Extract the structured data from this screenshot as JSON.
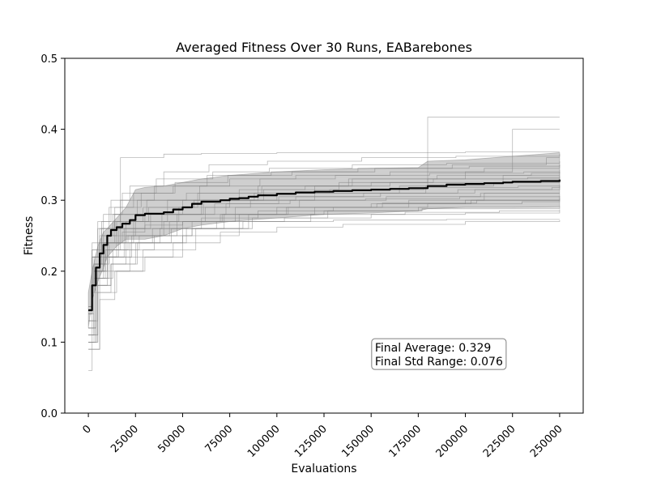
{
  "chart_data": {
    "type": "line",
    "title": "Averaged Fitness Over 30 Runs, EABarebones",
    "xlabel": "Evaluations",
    "ylabel": "Fitness",
    "xlim": [
      -12500,
      262500
    ],
    "ylim": [
      0,
      0.5
    ],
    "x_ticks": [
      0,
      25000,
      50000,
      75000,
      100000,
      125000,
      150000,
      175000,
      200000,
      225000,
      250000
    ],
    "y_ticks": [
      0.0,
      0.1,
      0.2,
      0.3,
      0.4,
      0.5
    ],
    "y_tick_labels": [
      "0.0",
      "0.1",
      "0.2",
      "0.3",
      "0.4",
      "0.5"
    ],
    "grid": false,
    "colors": {
      "mean": "#000000",
      "band": "#808080",
      "runs": "#808080",
      "axes": "#000000",
      "annotation_border": "#808080"
    },
    "mean_series": {
      "x": [
        0,
        2000,
        4000,
        6000,
        8000,
        10000,
        12000,
        15000,
        18000,
        22000,
        25000,
        30000,
        40000,
        45000,
        50000,
        55000,
        60000,
        70000,
        75000,
        80000,
        85000,
        90000,
        100000,
        110000,
        120000,
        130000,
        140000,
        150000,
        160000,
        170000,
        180000,
        190000,
        200000,
        210000,
        220000,
        225000,
        240000,
        250000
      ],
      "y": [
        0.145,
        0.18,
        0.205,
        0.225,
        0.237,
        0.25,
        0.258,
        0.262,
        0.267,
        0.272,
        0.279,
        0.281,
        0.283,
        0.287,
        0.29,
        0.295,
        0.298,
        0.3,
        0.302,
        0.303,
        0.305,
        0.307,
        0.309,
        0.311,
        0.312,
        0.313,
        0.314,
        0.315,
        0.316,
        0.317,
        0.32,
        0.322,
        0.323,
        0.324,
        0.325,
        0.326,
        0.327,
        0.329
      ]
    },
    "std_band": {
      "x": [
        0,
        2000,
        5000,
        8000,
        10000,
        15000,
        20000,
        25000,
        30000,
        40000,
        50000,
        60000,
        75000,
        100000,
        125000,
        150000,
        175000,
        180000,
        200000,
        225000,
        250000
      ],
      "upper": [
        0.17,
        0.2,
        0.235,
        0.255,
        0.26,
        0.275,
        0.29,
        0.315,
        0.318,
        0.32,
        0.325,
        0.33,
        0.335,
        0.34,
        0.343,
        0.345,
        0.346,
        0.355,
        0.357,
        0.362,
        0.367
      ],
      "lower": [
        0.12,
        0.16,
        0.185,
        0.205,
        0.22,
        0.235,
        0.245,
        0.245,
        0.245,
        0.25,
        0.26,
        0.265,
        0.27,
        0.275,
        0.28,
        0.282,
        0.285,
        0.288,
        0.29,
        0.29,
        0.291
      ]
    },
    "individual_runs": [
      {
        "x": [
          0,
          3000,
          8000,
          20000,
          42000,
          80000,
          120000,
          150000,
          180000,
          220000,
          250000
        ],
        "y": [
          0.1,
          0.2,
          0.24,
          0.27,
          0.3,
          0.31,
          0.32,
          0.325,
          0.33,
          0.335,
          0.335
        ]
      },
      {
        "x": [
          0,
          2000,
          6000,
          15000,
          30000,
          60000,
          100000,
          179000,
          180000,
          250000
        ],
        "y": [
          0.06,
          0.17,
          0.22,
          0.26,
          0.28,
          0.3,
          0.31,
          0.32,
          0.417,
          0.417
        ]
      },
      {
        "x": [
          0,
          4000,
          10000,
          25000,
          50000,
          90000,
          140000,
          200000,
          225000,
          250000
        ],
        "y": [
          0.12,
          0.21,
          0.25,
          0.28,
          0.3,
          0.32,
          0.33,
          0.34,
          0.4,
          0.4
        ]
      },
      {
        "x": [
          0,
          3000,
          9000,
          17000,
          40000,
          60000,
          100000,
          140000,
          200000,
          250000
        ],
        "y": [
          0.11,
          0.19,
          0.23,
          0.36,
          0.365,
          0.366,
          0.367,
          0.367,
          0.368,
          0.368
        ]
      },
      {
        "x": [
          0,
          5000,
          12000,
          20000,
          35000,
          55000,
          85000,
          130000,
          190000,
          250000
        ],
        "y": [
          0.1,
          0.18,
          0.21,
          0.23,
          0.25,
          0.26,
          0.27,
          0.272,
          0.273,
          0.273
        ]
      },
      {
        "x": [
          0,
          4000,
          10000,
          18000,
          30000,
          50000,
          70000,
          100000,
          150000,
          200000,
          250000
        ],
        "y": [
          0.13,
          0.2,
          0.24,
          0.255,
          0.265,
          0.27,
          0.28,
          0.29,
          0.295,
          0.3,
          0.305
        ]
      },
      {
        "x": [
          0,
          3000,
          7000,
          14000,
          28000,
          45000,
          75000,
          110000,
          160000,
          210000,
          250000
        ],
        "y": [
          0.14,
          0.22,
          0.26,
          0.29,
          0.31,
          0.32,
          0.33,
          0.335,
          0.34,
          0.345,
          0.35
        ]
      },
      {
        "x": [
          0,
          6000,
          15000,
          30000,
          50000,
          80000,
          120000,
          170000,
          210000,
          250000
        ],
        "y": [
          0.09,
          0.17,
          0.2,
          0.22,
          0.25,
          0.28,
          0.29,
          0.3,
          0.31,
          0.31
        ]
      },
      {
        "x": [
          0,
          2000,
          5000,
          12000,
          22000,
          40000,
          64000,
          95000,
          145000,
          195000,
          250000
        ],
        "y": [
          0.15,
          0.23,
          0.27,
          0.3,
          0.32,
          0.34,
          0.35,
          0.355,
          0.36,
          0.362,
          0.365
        ]
      },
      {
        "x": [
          0,
          4000,
          8000,
          16000,
          34000,
          60000,
          90000,
          130000,
          180000,
          230000,
          250000
        ],
        "y": [
          0.12,
          0.19,
          0.22,
          0.24,
          0.26,
          0.275,
          0.285,
          0.29,
          0.295,
          0.298,
          0.3
        ]
      },
      {
        "x": [
          0,
          3000,
          9000,
          20000,
          40000,
          62000,
          86000,
          120000,
          165000,
          215000,
          250000
        ],
        "y": [
          0.11,
          0.2,
          0.23,
          0.25,
          0.27,
          0.29,
          0.3,
          0.31,
          0.32,
          0.325,
          0.33
        ]
      },
      {
        "x": [
          0,
          5000,
          11000,
          24000,
          48000,
          75000,
          110000,
          155000,
          205000,
          250000
        ],
        "y": [
          0.13,
          0.21,
          0.24,
          0.27,
          0.29,
          0.3,
          0.305,
          0.31,
          0.315,
          0.32
        ]
      },
      {
        "x": [
          0,
          2000,
          6000,
          13000,
          26000,
          52000,
          80000,
          115000,
          160000,
          220000,
          250000
        ],
        "y": [
          0.14,
          0.22,
          0.25,
          0.28,
          0.3,
          0.31,
          0.315,
          0.32,
          0.325,
          0.33,
          0.34
        ]
      },
      {
        "x": [
          0,
          4000,
          10000,
          22000,
          45000,
          70000,
          100000,
          135000,
          200000,
          250000
        ],
        "y": [
          0.1,
          0.18,
          0.2,
          0.22,
          0.24,
          0.255,
          0.262,
          0.266,
          0.27,
          0.272
        ]
      },
      {
        "x": [
          0,
          3000,
          7000,
          15000,
          32000,
          58000,
          92000,
          138000,
          185000,
          235000,
          250000
        ],
        "y": [
          0.12,
          0.21,
          0.25,
          0.27,
          0.29,
          0.31,
          0.32,
          0.33,
          0.335,
          0.338,
          0.34
        ]
      },
      {
        "x": [
          0,
          5000,
          13000,
          27000,
          55000,
          85000,
          125000,
          175000,
          250000
        ],
        "y": [
          0.11,
          0.19,
          0.23,
          0.25,
          0.27,
          0.28,
          0.285,
          0.29,
          0.292
        ]
      },
      {
        "x": [
          0,
          2000,
          8000,
          18000,
          36000,
          66000,
          96000,
          140000,
          190000,
          250000
        ],
        "y": [
          0.15,
          0.24,
          0.28,
          0.31,
          0.33,
          0.34,
          0.345,
          0.35,
          0.352,
          0.355
        ]
      },
      {
        "x": [
          0,
          4000,
          9000,
          19000,
          38000,
          68000,
          104000,
          150000,
          200000,
          250000
        ],
        "y": [
          0.13,
          0.2,
          0.22,
          0.24,
          0.26,
          0.27,
          0.275,
          0.28,
          0.282,
          0.285
        ]
      },
      {
        "x": [
          0,
          3000,
          6000,
          14000,
          29000,
          56000,
          88000,
          128000,
          178000,
          228000,
          250000
        ],
        "y": [
          0.12,
          0.21,
          0.24,
          0.27,
          0.29,
          0.3,
          0.31,
          0.315,
          0.318,
          0.32,
          0.322
        ]
      },
      {
        "x": [
          0,
          5000,
          12000,
          25000,
          50000,
          78000,
          112000,
          158000,
          208000,
          250000
        ],
        "y": [
          0.1,
          0.17,
          0.21,
          0.24,
          0.27,
          0.29,
          0.3,
          0.305,
          0.31,
          0.31
        ]
      },
      {
        "x": [
          0,
          2000,
          5000,
          11000,
          24000,
          46000,
          74000,
          108000,
          152000,
          202000,
          250000
        ],
        "y": [
          0.14,
          0.22,
          0.26,
          0.29,
          0.31,
          0.325,
          0.335,
          0.34,
          0.345,
          0.348,
          0.35
        ]
      },
      {
        "x": [
          0,
          4000,
          11000,
          23000,
          47000,
          73000,
          107000,
          147000,
          197000,
          250000
        ],
        "y": [
          0.11,
          0.19,
          0.22,
          0.25,
          0.28,
          0.295,
          0.3,
          0.302,
          0.305,
          0.306
        ]
      },
      {
        "x": [
          0,
          3000,
          8000,
          16000,
          33000,
          61000,
          93000,
          133000,
          183000,
          233000,
          250000
        ],
        "y": [
          0.13,
          0.2,
          0.24,
          0.26,
          0.28,
          0.3,
          0.315,
          0.325,
          0.33,
          0.332,
          0.333
        ]
      },
      {
        "x": [
          0,
          6000,
          14000,
          29000,
          57000,
          87000,
          127000,
          177000,
          250000
        ],
        "y": [
          0.09,
          0.16,
          0.2,
          0.23,
          0.26,
          0.275,
          0.285,
          0.288,
          0.29
        ]
      },
      {
        "x": [
          0,
          2000,
          7000,
          17000,
          35000,
          63000,
          97000,
          143000,
          193000,
          243000,
          250000
        ],
        "y": [
          0.15,
          0.23,
          0.27,
          0.3,
          0.32,
          0.335,
          0.34,
          0.345,
          0.35,
          0.36,
          0.36
        ]
      },
      {
        "x": [
          0,
          4000,
          10000,
          21000,
          43000,
          71000,
          105000,
          153000,
          203000,
          250000
        ],
        "y": [
          0.12,
          0.2,
          0.23,
          0.25,
          0.27,
          0.28,
          0.29,
          0.295,
          0.3,
          0.302
        ]
      },
      {
        "x": [
          0,
          3000,
          9000,
          19000,
          39000,
          67000,
          101000,
          146000,
          196000,
          246000,
          250000
        ],
        "y": [
          0.12,
          0.21,
          0.24,
          0.26,
          0.28,
          0.295,
          0.305,
          0.31,
          0.315,
          0.318,
          0.32
        ]
      },
      {
        "x": [
          0,
          5000,
          12000,
          26000,
          52000,
          82000,
          118000,
          168000,
          218000,
          250000
        ],
        "y": [
          0.11,
          0.18,
          0.21,
          0.24,
          0.26,
          0.27,
          0.28,
          0.283,
          0.285,
          0.287
        ]
      },
      {
        "x": [
          0,
          2000,
          6000,
          14000,
          31000,
          59000,
          91000,
          131000,
          181000,
          231000,
          250000
        ],
        "y": [
          0.14,
          0.22,
          0.26,
          0.28,
          0.3,
          0.32,
          0.33,
          0.335,
          0.338,
          0.34,
          0.343
        ]
      },
      {
        "x": [
          0,
          4000,
          10000,
          22000,
          44000,
          72000,
          106000,
          156000,
          206000,
          250000
        ],
        "y": [
          0.1,
          0.19,
          0.22,
          0.24,
          0.26,
          0.28,
          0.29,
          0.296,
          0.3,
          0.3
        ]
      }
    ],
    "annotation": {
      "lines": [
        "Final Average: 0.329",
        "Final Std Range: 0.076"
      ],
      "x": 152000,
      "y": 0.074
    }
  }
}
